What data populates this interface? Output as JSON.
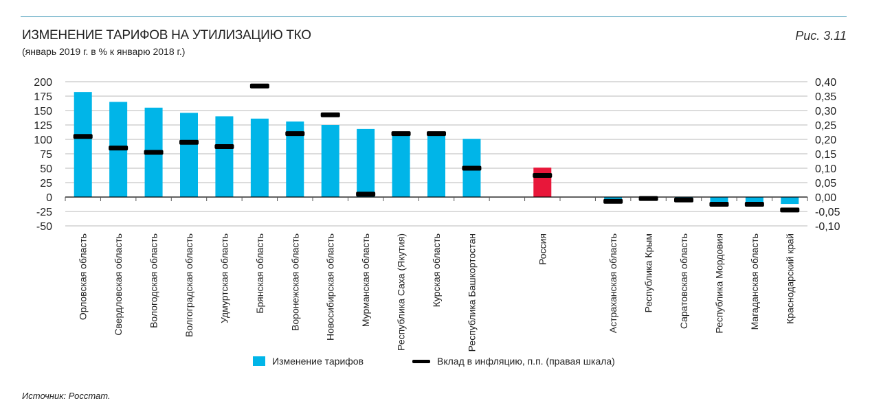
{
  "header": {
    "title": "ИЗМЕНЕНИЕ ТАРИФОВ НА УТИЛИЗАЦИЮ ТКО",
    "subtitle": "(январь 2019 г. в % к январю 2018 г.)",
    "figure": "Рис. 3.11"
  },
  "source": "Источник: Росстат.",
  "colors": {
    "bar": "#00b5e8",
    "highlight": "#e8173a",
    "marker": "#000000",
    "grid": "#c8c8c8"
  },
  "chart_data": {
    "type": "bar",
    "title": "ИЗМЕНЕНИЕ ТАРИФОВ НА УТИЛИЗАЦИЮ ТКО",
    "categories": [
      "Орловская область",
      "Свердловская область",
      "Вологодская область",
      "Волгоградская область",
      "Удмуртская область",
      "Брянская область",
      "Воронежская область",
      "Новосибирская область",
      "Мурманская область",
      "Республика Саха (Якутия)",
      "Курская область",
      "Республика Башкортостан",
      "",
      "Россия",
      "",
      "Астраханская область",
      "Республика Крым",
      "Саратовская область",
      "Республика Мордовия",
      "Магаданская область",
      "Краснодарский край"
    ],
    "highlight_category": "Россия",
    "series": [
      {
        "name": "Изменение тарифов",
        "axis": "left",
        "type": "bar",
        "values": [
          182,
          165,
          155,
          146,
          140,
          136,
          131,
          125,
          118,
          110,
          106,
          101,
          null,
          51,
          null,
          -5,
          -1,
          -2,
          -12,
          -12,
          -12
        ]
      },
      {
        "name": "Вклад в инфляцию, п.п. (правая шкала)",
        "axis": "right",
        "type": "marker",
        "values": [
          0.21,
          0.17,
          0.155,
          0.19,
          0.175,
          0.385,
          0.22,
          0.285,
          0.01,
          0.22,
          0.22,
          0.1,
          null,
          0.075,
          null,
          -0.015,
          -0.005,
          -0.01,
          -0.025,
          -0.025,
          -0.045
        ]
      }
    ],
    "left_axis": {
      "ylim": [
        -50,
        200
      ],
      "ticks": [
        "200",
        "175",
        "150",
        "125",
        "100",
        "75",
        "50",
        "25",
        "0",
        "-25",
        "-50"
      ]
    },
    "right_axis": {
      "ylim": [
        -0.1,
        0.4
      ],
      "ticks": [
        "0,40",
        "0,35",
        "0,30",
        "0,25",
        "0,20",
        "0,15",
        "0,10",
        "0,05",
        "0,00",
        "-0,05",
        "-0,10"
      ]
    },
    "legend": {
      "placement": "bottom",
      "items": [
        "Изменение тарифов",
        "Вклад в инфляцию, п.п. (правая шкала)"
      ]
    },
    "grid": true
  }
}
